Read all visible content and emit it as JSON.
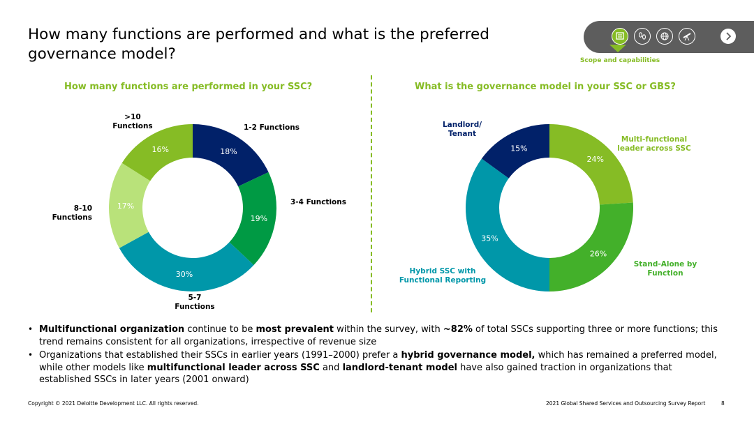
{
  "title": "How many functions are performed and what is the preferred governance model?",
  "nav": {
    "icons": [
      "scope-icon",
      "footprints-icon",
      "globe-icon",
      "telescope-icon"
    ],
    "active_label": "Scope and capabilities"
  },
  "colors": {
    "green": "#86bc25",
    "dark_green": "#009a44",
    "mid_green": "#43b02a",
    "light_green": "#c4e17f",
    "teal": "#0097a9",
    "navy": "#012169"
  },
  "chart_data": [
    {
      "type": "pie",
      "donut": true,
      "title": "How many functions are performed in your SSC?",
      "categories": [
        "1-2 Functions",
        "3-4 Functions",
        "5-7 Functions",
        "8-10 Functions",
        ">10 Functions"
      ],
      "values": [
        18,
        19,
        30,
        17,
        16
      ],
      "value_labels": [
        "18%",
        "19%",
        "30%",
        "17%",
        "16%"
      ],
      "colors": [
        "#012169",
        "#009a44",
        "#0097a9",
        "#b9e27a",
        "#86bc25"
      ],
      "label_colors": [
        "#000000",
        "#000000",
        "#000000",
        "#000000",
        "#000000"
      ]
    },
    {
      "type": "pie",
      "donut": true,
      "title": "What is the governance model in your SSC or GBS?",
      "categories": [
        "Multi-functional leader across SSC",
        "Stand-Alone by Function",
        "Hybrid SSC with Functional Reporting",
        "Landlord/ Tenant"
      ],
      "values": [
        24,
        26,
        35,
        15
      ],
      "value_labels": [
        "24%",
        "26%",
        "35%",
        "15%"
      ],
      "colors": [
        "#86bc25",
        "#43b02a",
        "#0097a9",
        "#012169"
      ],
      "label_colors": [
        "#86bc25",
        "#43b02a",
        "#0097a9",
        "#012169"
      ]
    }
  ],
  "bullets": [
    [
      {
        "t": "Multifunctional organization",
        "b": true
      },
      {
        "t": " continue to be ",
        "b": false
      },
      {
        "t": "most prevalent",
        "b": true
      },
      {
        "t": " within the survey, with ",
        "b": false
      },
      {
        "t": "~82%",
        "b": true
      },
      {
        "t": " of total SSCs supporting three or more functions; this trend remains consistent  for all organizations, irrespective of revenue size",
        "b": false
      }
    ],
    [
      {
        "t": "Organizations that established their SSCs in earlier years (1991–2000) prefer a ",
        "b": false
      },
      {
        "t": "hybrid governance model,",
        "b": true
      },
      {
        "t": " which has remained a preferred model, while other models like ",
        "b": false
      },
      {
        "t": "multifunctional leader across SSC",
        "b": true
      },
      {
        "t": " and ",
        "b": false
      },
      {
        "t": "landlord-tenant model",
        "b": true
      },
      {
        "t": " have also gained traction in organizations that established SSCs in later years (2001 onward)",
        "b": false
      }
    ]
  ],
  "footer": {
    "copyright": "Copyright © 2021 Deloitte Development LLC. All rights reserved.",
    "report": "2021 Global Shared Services and Outsourcing Survey Report",
    "page": "8"
  }
}
